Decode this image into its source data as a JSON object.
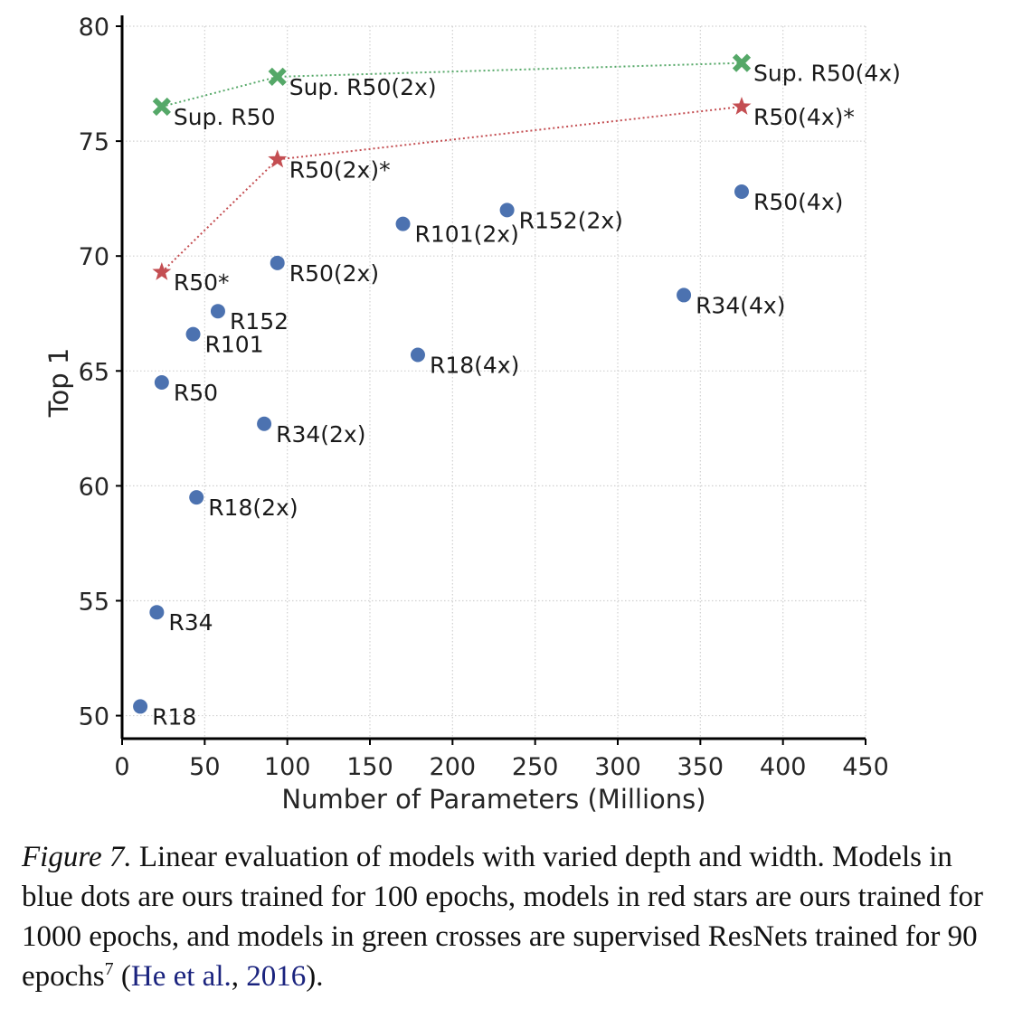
{
  "chart_data": {
    "type": "scatter",
    "xlabel": "Number of Parameters (Millions)",
    "ylabel": "Top 1",
    "xlim": [
      0,
      450
    ],
    "ylim": [
      49,
      80
    ],
    "xticks": [
      0,
      50,
      100,
      150,
      200,
      250,
      300,
      350,
      400,
      450
    ],
    "yticks": [
      50,
      55,
      60,
      65,
      70,
      75,
      80
    ],
    "grid": true,
    "series": [
      {
        "marker": "dot",
        "color": "#4c72b0",
        "connected": false,
        "points": [
          {
            "label": "R18",
            "x": 11,
            "y": 50.4
          },
          {
            "label": "R34",
            "x": 21,
            "y": 54.5
          },
          {
            "label": "R50",
            "x": 24,
            "y": 64.5
          },
          {
            "label": "R101",
            "x": 43,
            "y": 66.6
          },
          {
            "label": "R152",
            "x": 58,
            "y": 67.6
          },
          {
            "label": "R18(2x)",
            "x": 45,
            "y": 59.5
          },
          {
            "label": "R34(2x)",
            "x": 86,
            "y": 62.7
          },
          {
            "label": "R50(2x)",
            "x": 94,
            "y": 69.7
          },
          {
            "label": "R101(2x)",
            "x": 170,
            "y": 71.4
          },
          {
            "label": "R152(2x)",
            "x": 233,
            "y": 72.0
          },
          {
            "label": "R18(4x)",
            "x": 179,
            "y": 65.7
          },
          {
            "label": "R34(4x)",
            "x": 340,
            "y": 68.3
          },
          {
            "label": "R50(4x)",
            "x": 375,
            "y": 72.8
          }
        ]
      },
      {
        "marker": "star",
        "color": "#c44e52",
        "connected": true,
        "points": [
          {
            "label": "R50*",
            "x": 24,
            "y": 69.3
          },
          {
            "label": "R50(2x)*",
            "x": 94,
            "y": 74.2
          },
          {
            "label": "R50(4x)*",
            "x": 375,
            "y": 76.5
          }
        ]
      },
      {
        "marker": "cross",
        "color": "#55a868",
        "connected": true,
        "points": [
          {
            "label": "Sup. R50",
            "x": 24,
            "y": 76.5
          },
          {
            "label": "Sup. R50(2x)",
            "x": 94,
            "y": 77.8
          },
          {
            "label": "Sup. R50(4x)",
            "x": 375,
            "y": 78.4
          }
        ]
      }
    ]
  },
  "caption": {
    "figure_label": "Figure 7.",
    "text_before": " Linear evaluation of models with varied depth and width. Models in blue dots are ours trained for 100 epochs, models in red stars are ours trained for 1000 epochs, and models in green crosses are supervised ResNets trained for 90 epochs",
    "footnote": "7",
    "citation_open": " (",
    "citation_authors": "He et al.",
    "citation_sep": ", ",
    "citation_year": "2016",
    "citation_close": ")."
  }
}
